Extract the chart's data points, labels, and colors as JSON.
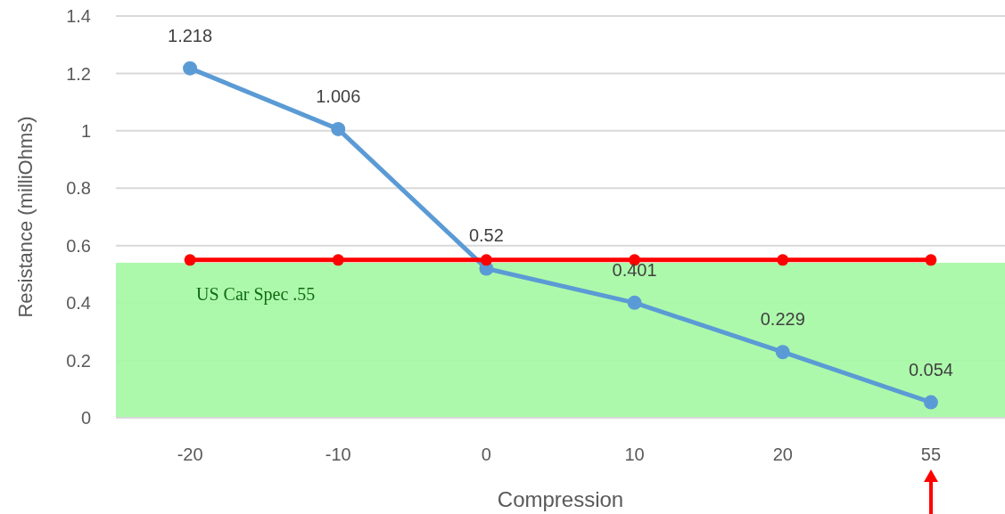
{
  "chart_data": {
    "type": "line",
    "xlabel": "Compression",
    "ylabel": "Resistance (milliOhms)",
    "categories": [
      "-20",
      "-10",
      "0",
      "10",
      "20",
      "55"
    ],
    "series": [
      {
        "color": "#5b9bd5",
        "values": [
          1.218,
          1.006,
          0.52,
          0.401,
          0.229,
          0.054
        ],
        "value_labels": [
          "1.218",
          "1.006",
          "0.52",
          "0.401",
          "0.229",
          "0.054"
        ]
      },
      {
        "color": "#ff0000",
        "values": [
          0.55,
          0.55,
          0.55,
          0.55,
          0.55,
          0.55
        ]
      }
    ],
    "ylim": [
      0,
      1.4
    ],
    "yticks": [
      0,
      0.2,
      0.4,
      0.6,
      0.8,
      1,
      1.2,
      1.4
    ],
    "grid": "y",
    "marker": "circle",
    "line_style": "solid",
    "bands": [
      {
        "axis": "y",
        "from": 0,
        "to": 0.54,
        "label": "US Car Spec .55",
        "color": "#a6f8a4"
      }
    ]
  }
}
